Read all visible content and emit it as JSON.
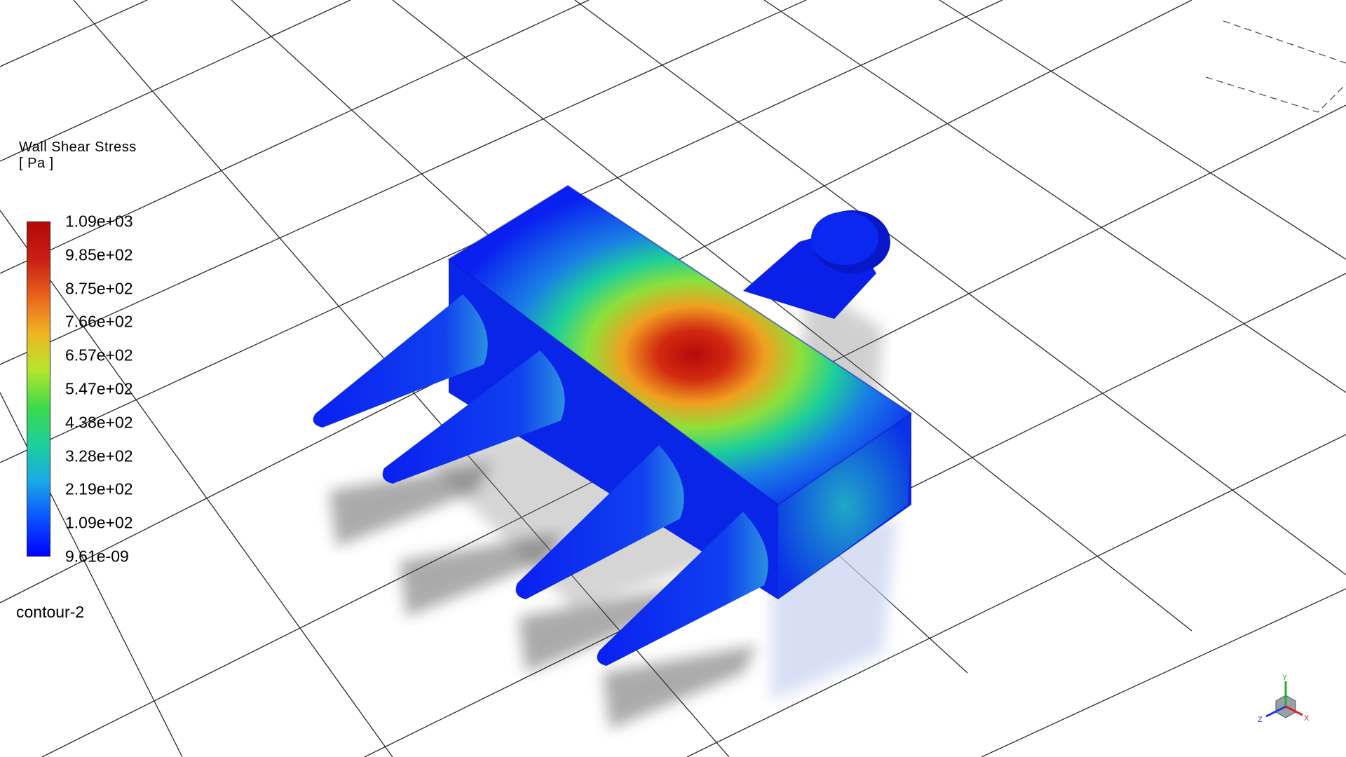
{
  "legend": {
    "title": "Wall Shear Stress",
    "unit": "[ Pa ]",
    "ticks": [
      "1.09e+03",
      "9.85e+02",
      "8.75e+02",
      "7.66e+02",
      "6.57e+02",
      "5.47e+02",
      "4.38e+02",
      "3.28e+02",
      "2.19e+02",
      "1.09e+02",
      "9.61e-09"
    ],
    "colormap": [
      "#0000ff",
      "#0a52ff",
      "#1aa8e6",
      "#1ccf9a",
      "#3cd94a",
      "#b4e62d",
      "#f0b422",
      "#e8641c",
      "#c81e12",
      "#b40a0a"
    ]
  },
  "contour": {
    "name": "contour-2"
  },
  "triad": {
    "labels": [
      "Y",
      "X",
      "Z"
    ],
    "colors": {
      "x": "#e0201a",
      "y": "#1fb030",
      "z": "#2040e0"
    }
  }
}
